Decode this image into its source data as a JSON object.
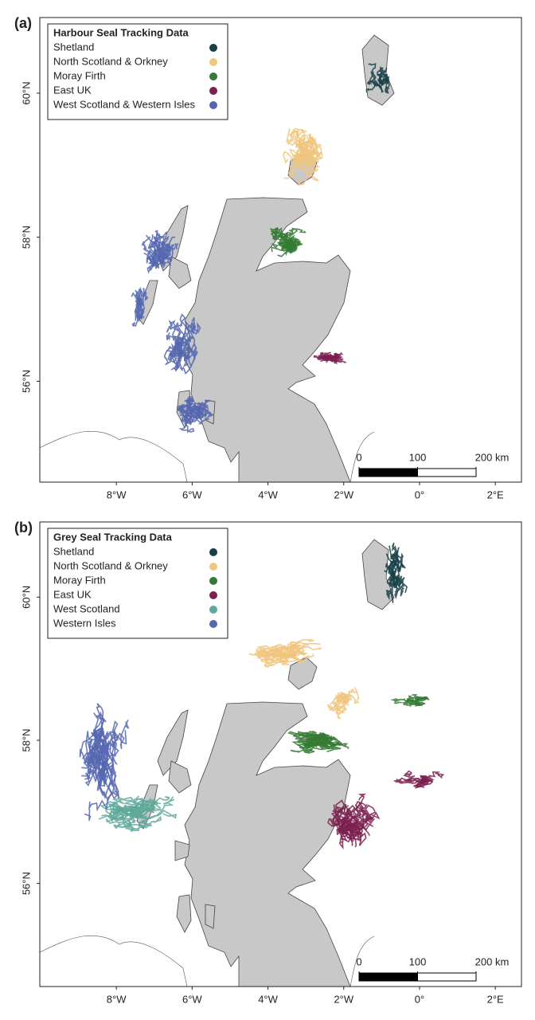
{
  "panels": [
    {
      "label": "(a)",
      "legend": {
        "title": "Harbour Seal Tracking Data",
        "series": [
          {
            "name": "Shetland",
            "color": "#173f47"
          },
          {
            "name": "North Scotland & Orkney",
            "color": "#f0c67e"
          },
          {
            "name": "Moray Firth",
            "color": "#347a34"
          },
          {
            "name": "East UK",
            "color": "#7b2150"
          },
          {
            "name": "West Scotland & Western Isles",
            "color": "#5567b0"
          }
        ]
      },
      "xlim": [
        -10.02,
        2.69
      ],
      "ylim": [
        54.6,
        61.05
      ],
      "xticks": [
        {
          "value": -8,
          "label": "8°W"
        },
        {
          "value": -6,
          "label": "6°W"
        },
        {
          "value": -4,
          "label": "4°W"
        },
        {
          "value": -2,
          "label": "2°W"
        },
        {
          "value": 0,
          "label": "0°"
        },
        {
          "value": 2,
          "label": "2°E"
        }
      ],
      "yticks": [
        {
          "value": 56,
          "label": "56°N"
        },
        {
          "value": 58,
          "label": "58°N"
        },
        {
          "value": 60,
          "label": "60°N"
        }
      ],
      "scale_bar": [
        0,
        100,
        {
          "value": 200,
          "label": "200 km"
        }
      ]
    },
    {
      "label": "(b)",
      "legend": {
        "title": "Grey Seal Tracking Data",
        "series": [
          {
            "name": "Shetland",
            "color": "#173f47"
          },
          {
            "name": "North Scotland & Orkney",
            "color": "#f0c67e"
          },
          {
            "name": "Moray Firth",
            "color": "#347a34"
          },
          {
            "name": "East UK",
            "color": "#7b2150"
          },
          {
            "name": "West Scotland",
            "color": "#5fa89a"
          },
          {
            "name": "Western Isles",
            "color": "#5567b0"
          }
        ]
      },
      "xlim": [
        -10.02,
        2.69
      ],
      "ylim": [
        54.56,
        61.05
      ],
      "xticks": [
        {
          "value": -8,
          "label": "8°W"
        },
        {
          "value": -6,
          "label": "6°W"
        },
        {
          "value": -4,
          "label": "4°W"
        },
        {
          "value": -2,
          "label": "2°W"
        },
        {
          "value": 0,
          "label": "0°"
        },
        {
          "value": 2,
          "label": "2°E"
        }
      ],
      "yticks": [
        {
          "value": 56,
          "label": "56°N"
        },
        {
          "value": 58,
          "label": "58°N"
        },
        {
          "value": 60,
          "label": "60°N"
        }
      ],
      "scale_bar": [
        0,
        100,
        {
          "value": 200,
          "label": "200 km"
        }
      ]
    }
  ]
}
